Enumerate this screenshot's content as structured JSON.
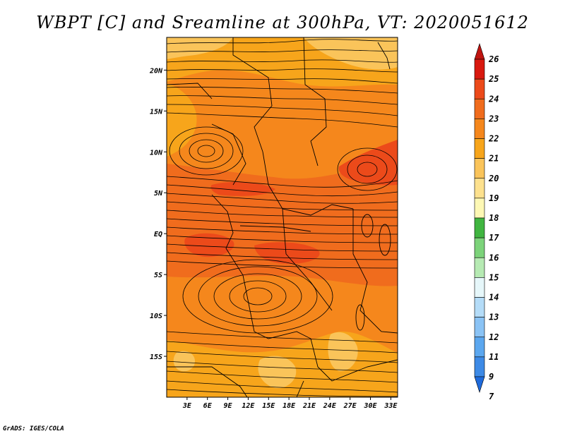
{
  "title": "WBPT [C] and Sreamline at 300hPa, VT: 2020051612",
  "credit": "GrADS: IGES/COLA",
  "map": {
    "variable": "Wet-bulb potential temperature (C)",
    "level": "300hPa",
    "valid_time": "2020051612",
    "lon_range": [
      0,
      34
    ],
    "lat_range": [
      -20,
      24
    ],
    "x_ticks": [
      {
        "value": 3,
        "label": "3E"
      },
      {
        "value": 6,
        "label": "6E"
      },
      {
        "value": 9,
        "label": "9E"
      },
      {
        "value": 12,
        "label": "12E"
      },
      {
        "value": 15,
        "label": "15E"
      },
      {
        "value": 18,
        "label": "18E"
      },
      {
        "value": 21,
        "label": "21E"
      },
      {
        "value": 24,
        "label": "24E"
      },
      {
        "value": 27,
        "label": "27E"
      },
      {
        "value": 30,
        "label": "30E"
      },
      {
        "value": 33,
        "label": "33E"
      }
    ],
    "y_ticks": [
      {
        "value": 20,
        "label": "20N"
      },
      {
        "value": 15,
        "label": "15N"
      },
      {
        "value": 10,
        "label": "10N"
      },
      {
        "value": 5,
        "label": "5N"
      },
      {
        "value": 0,
        "label": "EQ"
      },
      {
        "value": -5,
        "label": "5S"
      },
      {
        "value": -10,
        "label": "10S"
      },
      {
        "value": -15,
        "label": "15S"
      }
    ],
    "colors": {
      "c20": "#fac45a",
      "c21": "#f7a51b",
      "c22": "#f5871c",
      "c23": "#f06c1d",
      "c24": "#ec4a1a",
      "c25": "#d8190f"
    }
  },
  "colorbar": {
    "labels": [
      "26",
      "25",
      "24",
      "23",
      "22",
      "21",
      "20",
      "19",
      "18",
      "17",
      "16",
      "15",
      "14",
      "13",
      "12",
      "11",
      "9",
      "7"
    ],
    "colors": [
      "#c01410",
      "#d8190f",
      "#ec4a1a",
      "#f06c1d",
      "#f5871c",
      "#f7a51b",
      "#fac45a",
      "#fde18e",
      "#fdf8b4",
      "#40b540",
      "#7cd37a",
      "#b6eab3",
      "#e6f7fa",
      "#b4dcf8",
      "#8ac3f5",
      "#5ba7ef",
      "#3d8ae6",
      "#1e6adb"
    ]
  }
}
